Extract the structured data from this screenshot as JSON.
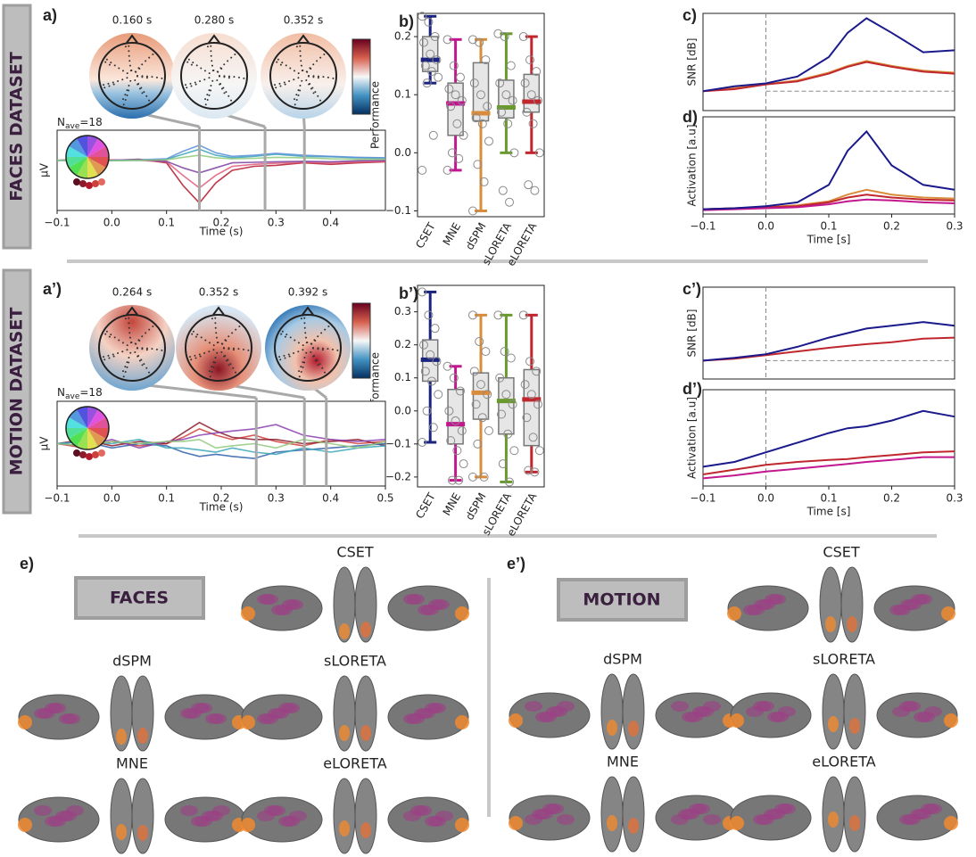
{
  "row_labels": [
    "FACES DATASET",
    "MOTION DATASET"
  ],
  "panel_labels": [
    "a)",
    "b)",
    "c)",
    "d)",
    "a’)",
    "b’)",
    "c’)",
    "d’)",
    "e)",
    "e’)"
  ],
  "topomap_times": {
    "faces": [
      "0.160 s",
      "0.280 s",
      "0.352 s"
    ],
    "motion": [
      "0.264 s",
      "0.352 s",
      "0.392 s"
    ]
  },
  "nave": {
    "symbol": "N",
    "subscript": "ave",
    "rest": "=18"
  },
  "brains": {
    "faces": {
      "title": "FACES",
      "methods": [
        "CSET",
        "dSPM",
        "sLORETA",
        "MNE",
        "eLORETA"
      ]
    },
    "motion": {
      "title": "MOTION",
      "methods": [
        "CSET",
        "dSPM",
        "sLORETA",
        "MNE",
        "eLORETA"
      ]
    }
  },
  "chart_data": [
    {
      "type": "line",
      "xlabel": "Time (s)",
      "ylabel": "µV",
      "x": [
        -0.1,
        -0.05,
        0,
        0.05,
        0.1,
        0.13,
        0.16,
        0.19,
        0.22,
        0.26,
        0.3,
        0.35,
        0.4,
        0.45,
        0.5
      ],
      "xlim": [
        -0.1,
        0.5
      ],
      "ylim": [
        -1,
        0.6
      ],
      "xticks": [
        {
          "value": -0.1,
          "label": "−0.1"
        },
        {
          "value": 0,
          "label": "0.0"
        },
        0.1,
        0.2,
        0.3,
        0.4
      ],
      "markers": [
        0.16,
        0.28,
        0.352
      ],
      "series": [
        {
          "color": "#b2182b",
          "values": [
            0,
            0.02,
            0,
            0.02,
            -0.05,
            -0.5,
            -0.85,
            -0.45,
            -0.2,
            -0.12,
            -0.1,
            -0.05,
            -0.08,
            -0.05,
            -0.03
          ]
        },
        {
          "color": "#e05a7a",
          "values": [
            0,
            0,
            0.01,
            0,
            -0.03,
            -0.3,
            -0.55,
            -0.3,
            -0.12,
            -0.08,
            -0.06,
            -0.04,
            -0.05,
            -0.03,
            -0.02
          ]
        },
        {
          "color": "#7b3fa0",
          "values": [
            0,
            0.01,
            0,
            0.01,
            -0.02,
            -0.15,
            -0.25,
            -0.15,
            -0.05,
            -0.04,
            -0.03,
            -0.02,
            -0.03,
            -0.01,
            0
          ]
        },
        {
          "color": "#3aa6b9",
          "values": [
            0,
            -0.01,
            0,
            0,
            0.02,
            0.12,
            0.22,
            0.1,
            0.05,
            0.08,
            0.12,
            0.08,
            0.07,
            0.05,
            0.04
          ]
        },
        {
          "color": "#5a8fd6",
          "values": [
            0,
            0,
            0,
            0.01,
            0.03,
            0.18,
            0.3,
            0.15,
            0.08,
            0.1,
            0.14,
            0.1,
            0.08,
            0.06,
            0.05
          ]
        },
        {
          "color": "#8fc97a",
          "values": [
            0,
            0.01,
            -0.01,
            0,
            0.01,
            0.06,
            0.1,
            0.05,
            0.03,
            0.04,
            0.06,
            0.05,
            0.03,
            0.02,
            0.02
          ]
        }
      ]
    },
    {
      "type": "box",
      "ylabel": "Performance",
      "categories": [
        "CSET",
        "MNE",
        "dSPM",
        "sLORETA",
        "eLORETA"
      ],
      "ylim": [
        -0.11,
        0.24
      ],
      "yticks": [
        {
          "value": -0.1,
          "label": "−0.1"
        },
        {
          "value": 0,
          "label": "0.0"
        },
        0.1,
        0.2
      ],
      "boxes": [
        {
          "color": "#1a237e",
          "min": 0.12,
          "q1": 0.14,
          "median": 0.16,
          "q3": 0.2,
          "max": 0.235,
          "points": [
            0.235,
            0.225,
            0.2,
            0.19,
            0.17,
            0.16,
            0.15,
            0.14,
            0.13,
            0.12,
            0.03,
            -0.03
          ]
        },
        {
          "color": "#c2188f",
          "min": -0.03,
          "q1": 0.03,
          "median": 0.085,
          "q3": 0.12,
          "max": 0.195,
          "points": [
            0.195,
            0.15,
            0.13,
            0.11,
            0.1,
            0.09,
            0.08,
            0.05,
            0.03,
            0,
            -0.01,
            -0.03
          ]
        },
        {
          "color": "#d98c3b",
          "min": -0.1,
          "q1": 0.055,
          "median": 0.068,
          "q3": 0.155,
          "max": 0.195,
          "points": [
            0.195,
            0.19,
            0.16,
            0.12,
            0.1,
            0.08,
            0.06,
            0.05,
            0.02,
            -0.02,
            -0.05,
            -0.1
          ]
        },
        {
          "color": "#6a992d",
          "min": 0,
          "q1": 0.06,
          "median": 0.078,
          "q3": 0.125,
          "max": 0.205,
          "points": [
            0.205,
            0.2,
            0.15,
            0.12,
            0.1,
            0.09,
            0.07,
            0.05,
            0,
            -0.065,
            -0.085
          ]
        },
        {
          "color": "#c0262d",
          "min": 0,
          "q1": 0.07,
          "median": 0.088,
          "q3": 0.135,
          "max": 0.2,
          "points": [
            0.2,
            0.16,
            0.14,
            0.12,
            0.1,
            0.09,
            0.07,
            0.05,
            0,
            -0.055,
            -0.065
          ]
        }
      ]
    },
    {
      "type": "box",
      "ylabel": "Performance",
      "categories": [
        "CSET",
        "MNE",
        "dSPM",
        "sLORETA",
        "eLORETA"
      ],
      "ylim": [
        -0.23,
        0.38
      ],
      "yticks": [
        {
          "value": -0.2,
          "label": "−0.2"
        },
        {
          "value": -0.1,
          "label": "−0.1"
        },
        {
          "value": 0,
          "label": "0.0"
        },
        0.1,
        0.2,
        0.3
      ],
      "boxes": [
        {
          "color": "#1a237e",
          "min": -0.095,
          "q1": 0.09,
          "median": 0.155,
          "q3": 0.215,
          "max": 0.36,
          "points": [
            0.36,
            0.29,
            0.25,
            0.2,
            0.17,
            0.15,
            0.12,
            0.09,
            0.05,
            0,
            -0.05,
            -0.095
          ]
        },
        {
          "color": "#c2188f",
          "min": -0.21,
          "q1": -0.1,
          "median": -0.04,
          "q3": 0.065,
          "max": 0.135,
          "points": [
            0.135,
            0.1,
            0.06,
            0,
            -0.03,
            -0.06,
            -0.09,
            -0.12,
            -0.16,
            -0.21,
            -0.21
          ]
        },
        {
          "color": "#d98c3b",
          "min": -0.2,
          "q1": -0.025,
          "median": 0.055,
          "q3": 0.115,
          "max": 0.29,
          "points": [
            0.29,
            0.21,
            0.18,
            0.12,
            0.08,
            0.05,
            0.02,
            -0.02,
            -0.06,
            -0.1,
            -0.2,
            -0.2
          ]
        },
        {
          "color": "#6a992d",
          "min": -0.215,
          "q1": -0.07,
          "median": 0.03,
          "q3": 0.1,
          "max": 0.29,
          "points": [
            0.29,
            0.18,
            0.16,
            0.1,
            0.05,
            0.02,
            -0.01,
            -0.07,
            -0.12,
            -0.16,
            -0.215
          ]
        },
        {
          "color": "#c0262d",
          "min": -0.185,
          "q1": -0.105,
          "median": 0.035,
          "q3": 0.125,
          "max": 0.29,
          "points": [
            0.29,
            0.15,
            0.12,
            0.08,
            0.05,
            0.02,
            -0.02,
            -0.08,
            -0.12,
            -0.18,
            -0.185
          ]
        }
      ]
    },
    {
      "type": "line",
      "ylabel": "SNR [dB]",
      "x": [
        -0.1,
        -0.05,
        0,
        0.05,
        0.1,
        0.13,
        0.16,
        0.2,
        0.25,
        0.3
      ],
      "xlim": [
        -0.1,
        0.3
      ],
      "ylim": [
        0,
        1
      ],
      "vline": 0,
      "hline": 0.2,
      "series": [
        {
          "color": "#d98c3b",
          "values": [
            0.2,
            0.23,
            0.27,
            0.31,
            0.39,
            0.46,
            0.51,
            0.46,
            0.41,
            0.39
          ]
        },
        {
          "color": "#c0262d",
          "values": [
            0.2,
            0.22,
            0.27,
            0.3,
            0.38,
            0.45,
            0.5,
            0.45,
            0.4,
            0.38
          ]
        },
        {
          "color": "#1a1a8c",
          "values": [
            0.2,
            0.25,
            0.28,
            0.35,
            0.55,
            0.8,
            0.95,
            0.8,
            0.6,
            0.62
          ]
        }
      ]
    },
    {
      "type": "line",
      "xlabel": "Time [s]",
      "ylabel": "Activation [a.u]",
      "x": [
        -0.1,
        -0.05,
        0,
        0.05,
        0.1,
        0.13,
        0.16,
        0.2,
        0.25,
        0.3
      ],
      "xlim": [
        -0.1,
        0.3
      ],
      "ylim": [
        0,
        1
      ],
      "vline": 0,
      "xticks": [
        {
          "value": -0.1,
          "label": "−0.1"
        },
        {
          "value": 0,
          "label": "0.0"
        },
        0.1,
        0.2,
        0.3
      ],
      "series": [
        {
          "color": "#d98c3b",
          "values": [
            0.05,
            0.06,
            0.07,
            0.09,
            0.13,
            0.2,
            0.25,
            0.2,
            0.17,
            0.16
          ]
        },
        {
          "color": "#c0262d",
          "values": [
            0.05,
            0.06,
            0.07,
            0.08,
            0.12,
            0.17,
            0.2,
            0.17,
            0.15,
            0.14
          ]
        },
        {
          "color": "#c2188f",
          "values": [
            0.04,
            0.05,
            0.06,
            0.07,
            0.1,
            0.13,
            0.15,
            0.14,
            0.12,
            0.11
          ]
        },
        {
          "color": "#1a1a8c",
          "values": [
            0.05,
            0.06,
            0.08,
            0.12,
            0.3,
            0.65,
            0.85,
            0.5,
            0.3,
            0.25
          ]
        }
      ]
    },
    {
      "type": "line",
      "xlabel": "Time (s)",
      "ylabel": "µV",
      "x": [
        -0.1,
        -0.05,
        0,
        0.05,
        0.1,
        0.13,
        0.16,
        0.19,
        0.22,
        0.26,
        0.3,
        0.35,
        0.4,
        0.45,
        0.5
      ],
      "xlim": [
        -0.1,
        0.5
      ],
      "ylim": [
        -1,
        1
      ],
      "xticks": [
        {
          "value": -0.1,
          "label": "−0.1"
        },
        {
          "value": 0,
          "label": "0.0"
        },
        0.1,
        0.2,
        0.3,
        0.4,
        0.5
      ],
      "markers": [
        0.264,
        0.352,
        0.392
      ],
      "series": [
        {
          "color": "#d0403a",
          "values": [
            0,
            -0.1,
            0.05,
            -0.05,
            0,
            0.15,
            0.35,
            0.2,
            0.1,
            0.2,
            0.05,
            -0.05,
            0.1,
            0,
            0.05
          ]
        },
        {
          "color": "#8b1a2b",
          "values": [
            0,
            0.1,
            -0.05,
            0.05,
            0,
            0.25,
            0.5,
            0.3,
            0.15,
            0.1,
            0.1,
            0,
            0.05,
            0.1,
            -0.05
          ]
        },
        {
          "color": "#2f5fa8",
          "values": [
            0,
            0.05,
            -0.1,
            0,
            -0.05,
            -0.2,
            -0.3,
            -0.25,
            -0.3,
            -0.35,
            -0.2,
            -0.15,
            -0.1,
            -0.05,
            0
          ]
        },
        {
          "color": "#8a3fb0",
          "values": [
            0,
            -0.05,
            0.1,
            -0.1,
            0.05,
            0.1,
            0.2,
            0.25,
            0.3,
            0.35,
            0.45,
            0.2,
            0.1,
            0.05,
            0.1
          ]
        },
        {
          "color": "#3aa6b9",
          "values": [
            0,
            0.05,
            0,
            0.1,
            -0.1,
            -0.1,
            -0.15,
            -0.2,
            -0.1,
            -0.2,
            -0.25,
            -0.1,
            -0.2,
            -0.1,
            -0.05
          ]
        },
        {
          "color": "#8fc97a",
          "values": [
            0,
            -0.05,
            0.05,
            0,
            0.05,
            0.05,
            0.1,
            -0.1,
            -0.05,
            0,
            -0.1,
            0.1,
            0,
            -0.1,
            0.05
          ]
        }
      ]
    },
    {
      "type": "line",
      "ylabel": "SNR [dB]",
      "x": [
        -0.1,
        -0.05,
        0,
        0.05,
        0.1,
        0.13,
        0.16,
        0.2,
        0.25,
        0.3
      ],
      "xlim": [
        -0.1,
        0.3
      ],
      "ylim": [
        0,
        1
      ],
      "vline": 0,
      "hline": 0.2,
      "series": [
        {
          "color": "#c0262d",
          "values": [
            0.2,
            0.22,
            0.26,
            0.3,
            0.34,
            0.36,
            0.38,
            0.4,
            0.44,
            0.45
          ]
        },
        {
          "color": "#1a1a8c",
          "values": [
            0.2,
            0.23,
            0.27,
            0.35,
            0.45,
            0.5,
            0.55,
            0.58,
            0.62,
            0.58
          ]
        }
      ]
    },
    {
      "type": "line",
      "xlabel": "Time [s]",
      "ylabel": "Activation [a.u]",
      "x": [
        -0.1,
        -0.05,
        0,
        0.05,
        0.1,
        0.13,
        0.16,
        0.2,
        0.25,
        0.3
      ],
      "xlim": [
        -0.1,
        0.3
      ],
      "ylim": [
        0,
        1
      ],
      "vline": 0,
      "xticks": [
        {
          "value": -0.1,
          "label": "−0.1"
        },
        {
          "value": 0,
          "label": "0.0"
        },
        0.1,
        0.2,
        0.3
      ],
      "series": [
        {
          "color": "#c2188f",
          "values": [
            0.08,
            0.11,
            0.15,
            0.18,
            0.21,
            0.23,
            0.25,
            0.27,
            0.3,
            0.3
          ]
        },
        {
          "color": "#c0262d",
          "values": [
            0.12,
            0.17,
            0.22,
            0.25,
            0.27,
            0.28,
            0.3,
            0.32,
            0.35,
            0.36
          ]
        },
        {
          "color": "#1a1a8c",
          "values": [
            0.2,
            0.25,
            0.35,
            0.45,
            0.55,
            0.6,
            0.62,
            0.68,
            0.78,
            0.72
          ]
        }
      ]
    }
  ]
}
